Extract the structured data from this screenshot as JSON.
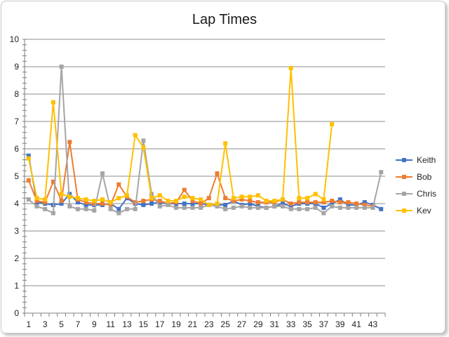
{
  "chart_data": {
    "type": "line",
    "title": "Lap Times",
    "xlabel": "",
    "ylabel": "",
    "ylim": [
      0,
      10
    ],
    "y_major_step": 1,
    "y_minor_step": 0.2,
    "grid": "horizontal major",
    "legend_position": "right",
    "x": [
      1,
      2,
      3,
      4,
      5,
      6,
      7,
      8,
      9,
      10,
      11,
      12,
      13,
      14,
      15,
      16,
      17,
      18,
      19,
      20,
      21,
      22,
      23,
      24,
      25,
      26,
      27,
      28,
      29,
      30,
      31,
      32,
      33,
      34,
      35,
      36,
      37,
      38,
      39,
      40,
      41,
      42,
      43,
      44
    ],
    "x_tick_labels": [
      "1",
      "3",
      "5",
      "7",
      "9",
      "11",
      "13",
      "15",
      "17",
      "19",
      "21",
      "23",
      "25",
      "27",
      "29",
      "31",
      "33",
      "35",
      "37",
      "39",
      "41",
      "43"
    ],
    "y_tick_labels": [
      "0",
      "1",
      "2",
      "3",
      "4",
      "5",
      "6",
      "7",
      "8",
      "9",
      "10"
    ],
    "series": [
      {
        "name": "Keith",
        "color": "#4472c4",
        "values": [
          5.75,
          4.05,
          4.0,
          3.95,
          4.0,
          4.35,
          4.05,
          3.95,
          3.95,
          3.95,
          4.0,
          3.8,
          4.2,
          4.0,
          3.95,
          4.0,
          4.05,
          4.0,
          4.0,
          4.0,
          4.0,
          4.0,
          3.95,
          3.95,
          3.95,
          4.1,
          3.95,
          4.0,
          3.9,
          3.85,
          3.9,
          4.0,
          3.9,
          4.0,
          4.0,
          4.0,
          3.85,
          4.0,
          4.15,
          3.95,
          3.95,
          4.05,
          3.95,
          3.8
        ]
      },
      {
        "name": "Bob",
        "color": "#ed7d31",
        "values": [
          4.85,
          4.1,
          4.05,
          4.8,
          4.1,
          6.25,
          4.15,
          4.05,
          4.0,
          4.0,
          3.95,
          4.7,
          4.25,
          4.05,
          4.1,
          4.15,
          4.1,
          4.0,
          4.05,
          4.5,
          4.1,
          4.0,
          4.2,
          5.1,
          4.2,
          4.1,
          4.15,
          4.1,
          4.05,
          4.05,
          4.05,
          4.15,
          4.0,
          4.05,
          4.05,
          4.05,
          4.05,
          4.1,
          4.05,
          4.05,
          4.0,
          3.95,
          3.9,
          null
        ]
      },
      {
        "name": "Chris",
        "color": "#a5a5a5",
        "values": [
          4.15,
          3.9,
          3.8,
          3.65,
          9.0,
          3.9,
          3.8,
          3.8,
          3.75,
          5.1,
          3.8,
          3.65,
          3.8,
          3.8,
          6.3,
          4.35,
          3.9,
          3.95,
          3.85,
          3.85,
          3.85,
          3.85,
          3.95,
          3.9,
          3.8,
          3.85,
          3.9,
          3.85,
          3.85,
          3.85,
          3.9,
          3.9,
          3.8,
          3.8,
          3.8,
          3.85,
          3.65,
          3.9,
          3.85,
          3.85,
          3.85,
          3.85,
          3.85,
          5.15
        ]
      },
      {
        "name": "Kev",
        "color": "#ffc000",
        "values": [
          5.65,
          4.2,
          4.15,
          7.7,
          4.35,
          4.25,
          4.2,
          4.15,
          4.1,
          4.15,
          4.05,
          4.2,
          4.3,
          6.5,
          6.05,
          4.2,
          4.3,
          4.1,
          4.1,
          4.25,
          4.2,
          4.15,
          3.95,
          4.0,
          6.2,
          4.2,
          4.25,
          4.25,
          4.3,
          4.1,
          4.1,
          4.15,
          8.95,
          4.2,
          4.2,
          4.35,
          4.15,
          6.9,
          null,
          null,
          null,
          null,
          null,
          null
        ]
      }
    ]
  }
}
